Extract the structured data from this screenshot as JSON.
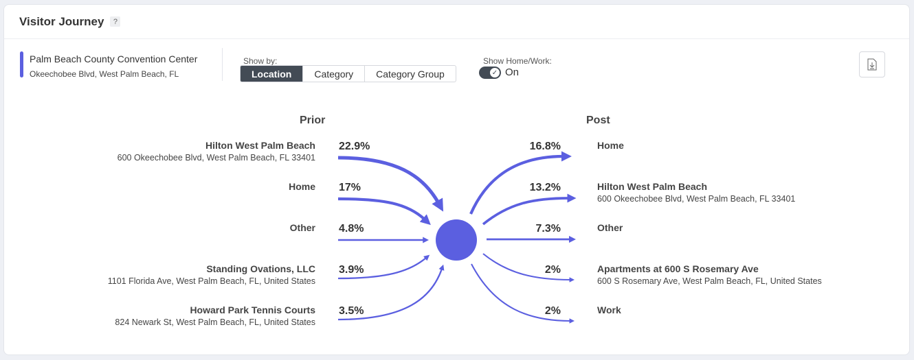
{
  "header": {
    "title": "Visitor Journey",
    "help": "?"
  },
  "location": {
    "name": "Palm Beach County Convention Center",
    "address": "Okeechobee Blvd, West Palm Beach, FL"
  },
  "show_by": {
    "label": "Show by:",
    "options": [
      "Location",
      "Category",
      "Category Group"
    ],
    "selected": "Location"
  },
  "home_work": {
    "label": "Show Home/Work:",
    "state": "On"
  },
  "icons": {
    "download": "download-file-icon",
    "toggle_check": "check-icon"
  },
  "colors": {
    "accent": "#5b5fe0",
    "dark": "#434b55"
  },
  "journey": {
    "prior_title": "Prior",
    "post_title": "Post",
    "prior": [
      {
        "name": "Hilton West Palm Beach",
        "address": "600 Okeechobee Blvd, West Palm Beach, FL 33401",
        "pct": "22.9%",
        "value": 22.9
      },
      {
        "name": "Home",
        "address": "",
        "pct": "17%",
        "value": 17
      },
      {
        "name": "Other",
        "address": "",
        "pct": "4.8%",
        "value": 4.8
      },
      {
        "name": "Standing Ovations, LLC",
        "address": "1101 Florida Ave, West Palm Beach, FL, United States",
        "pct": "3.9%",
        "value": 3.9
      },
      {
        "name": "Howard Park Tennis Courts",
        "address": "824 Newark St, West Palm Beach, FL, United States",
        "pct": "3.5%",
        "value": 3.5
      }
    ],
    "post": [
      {
        "name": "Home",
        "address": "",
        "pct": "16.8%",
        "value": 16.8
      },
      {
        "name": "Hilton West Palm Beach",
        "address": "600 Okeechobee Blvd, West Palm Beach, FL 33401",
        "pct": "13.2%",
        "value": 13.2
      },
      {
        "name": "Other",
        "address": "",
        "pct": "7.3%",
        "value": 7.3
      },
      {
        "name": "Apartments at 600 S Rosemary Ave",
        "address": "600 S Rosemary Ave, West Palm Beach, FL, United States",
        "pct": "2%",
        "value": 2
      },
      {
        "name": "Work",
        "address": "",
        "pct": "2%",
        "value": 2
      }
    ]
  }
}
